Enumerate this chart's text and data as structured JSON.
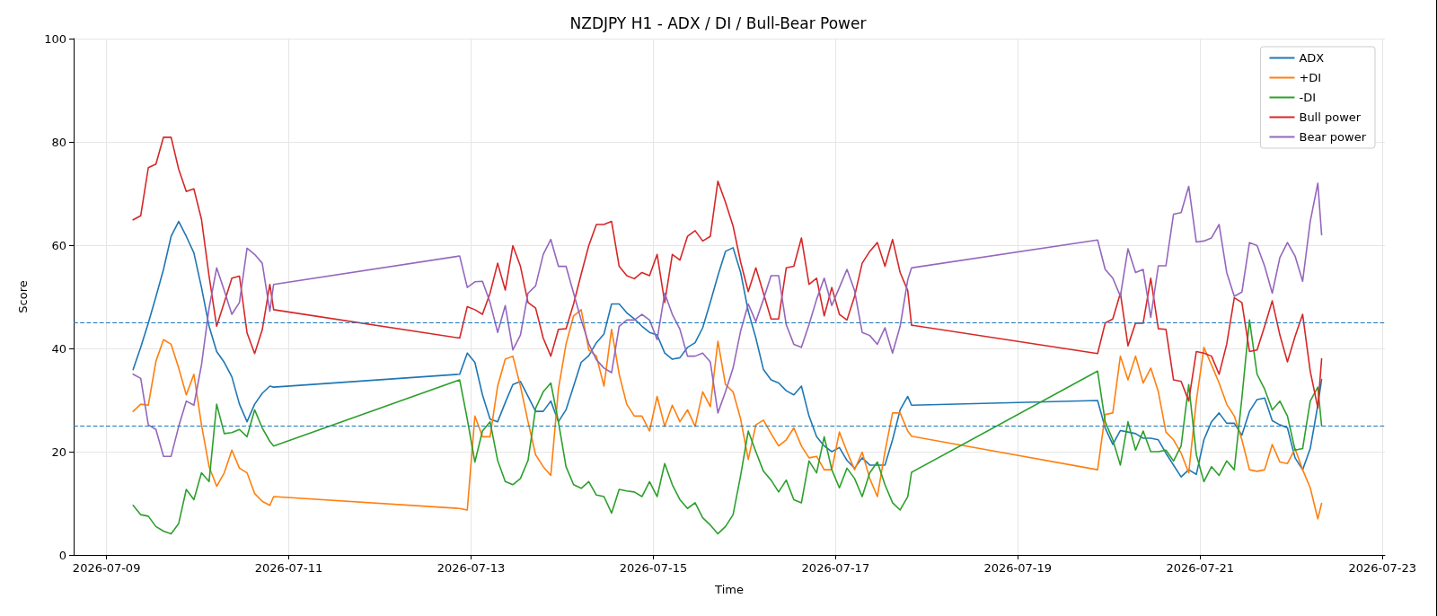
{
  "chart_data": {
    "type": "line",
    "title": "NZDJPY H1 - ADX / DI / Bull-Bear Power",
    "xlabel": "Time",
    "ylabel": "Score",
    "x": [
      "2026-07-09T07:00",
      "2026-07-09T09:00",
      "2026-07-09T11:00",
      "2026-07-09T13:00",
      "2026-07-09T15:00",
      "2026-07-09T17:00",
      "2026-07-09T19:00",
      "2026-07-09T21:00",
      "2026-07-09T23:00",
      "2026-07-10T01:00",
      "2026-07-10T03:00",
      "2026-07-10T05:00",
      "2026-07-10T07:00",
      "2026-07-10T09:00",
      "2026-07-10T11:00",
      "2026-07-10T13:00",
      "2026-07-10T15:00",
      "2026-07-10T17:00",
      "2026-07-10T19:00",
      "2026-07-10T20:00",
      "2026-07-12T21:00",
      "2026-07-12T23:00",
      "2026-07-13T01:00",
      "2026-07-13T03:00",
      "2026-07-13T05:00",
      "2026-07-13T07:00",
      "2026-07-13T09:00",
      "2026-07-13T11:00",
      "2026-07-13T13:00",
      "2026-07-13T15:00",
      "2026-07-13T17:00",
      "2026-07-13T19:00",
      "2026-07-13T21:00",
      "2026-07-13T23:00",
      "2026-07-14T01:00",
      "2026-07-14T03:00",
      "2026-07-14T05:00",
      "2026-07-14T07:00",
      "2026-07-14T09:00",
      "2026-07-14T11:00",
      "2026-07-14T13:00",
      "2026-07-14T15:00",
      "2026-07-14T17:00",
      "2026-07-14T19:00",
      "2026-07-14T21:00",
      "2026-07-14T23:00",
      "2026-07-15T01:00",
      "2026-07-15T03:00",
      "2026-07-15T05:00",
      "2026-07-15T07:00",
      "2026-07-15T09:00",
      "2026-07-15T11:00",
      "2026-07-15T13:00",
      "2026-07-15T15:00",
      "2026-07-15T17:00",
      "2026-07-15T19:00",
      "2026-07-15T21:00",
      "2026-07-15T23:00",
      "2026-07-16T01:00",
      "2026-07-16T03:00",
      "2026-07-16T05:00",
      "2026-07-16T07:00",
      "2026-07-16T09:00",
      "2026-07-16T11:00",
      "2026-07-16T13:00",
      "2026-07-16T15:00",
      "2026-07-16T17:00",
      "2026-07-16T19:00",
      "2026-07-16T21:00",
      "2026-07-16T23:00",
      "2026-07-17T01:00",
      "2026-07-17T03:00",
      "2026-07-17T05:00",
      "2026-07-17T07:00",
      "2026-07-17T09:00",
      "2026-07-17T11:00",
      "2026-07-17T13:00",
      "2026-07-17T15:00",
      "2026-07-17T17:00",
      "2026-07-17T19:00",
      "2026-07-17T20:00",
      "2026-07-19T21:00",
      "2026-07-19T23:00",
      "2026-07-20T01:00",
      "2026-07-20T03:00",
      "2026-07-20T05:00",
      "2026-07-20T07:00",
      "2026-07-20T09:00",
      "2026-07-20T11:00",
      "2026-07-20T13:00",
      "2026-07-20T15:00",
      "2026-07-20T17:00",
      "2026-07-20T19:00",
      "2026-07-20T21:00",
      "2026-07-20T23:00",
      "2026-07-21T01:00",
      "2026-07-21T03:00",
      "2026-07-21T05:00",
      "2026-07-21T07:00",
      "2026-07-21T09:00",
      "2026-07-21T11:00",
      "2026-07-21T13:00",
      "2026-07-21T15:00",
      "2026-07-21T17:00",
      "2026-07-21T19:00",
      "2026-07-21T21:00",
      "2026-07-21T23:00",
      "2026-07-22T01:00",
      "2026-07-22T03:00",
      "2026-07-22T05:00",
      "2026-07-22T07:00",
      "2026-07-22T08:00"
    ],
    "series": [
      {
        "name": "ADX",
        "color": "#1f77b4",
        "values": [
          35.9,
          40.2,
          44.9,
          50,
          55.3,
          61.7,
          64.6,
          61.7,
          58.5,
          51.8,
          44.3,
          39.4,
          37.3,
          34.5,
          29.2,
          25.8,
          29.2,
          31.3,
          32.7,
          32.5,
          35,
          39.1,
          37.3,
          31,
          26.3,
          25.8,
          29.5,
          33,
          33.6,
          30.7,
          27.8,
          27.8,
          29.8,
          25.8,
          28.1,
          32.7,
          37.3,
          38.6,
          41.1,
          42.8,
          48.6,
          48.6,
          46.9,
          45.7,
          44.3,
          43.1,
          42.6,
          39.1,
          37.9,
          38.2,
          40.2,
          41.1,
          44,
          48.9,
          54.1,
          58.8,
          59.5,
          54.7,
          47.2,
          42,
          35.9,
          33.9,
          33.3,
          31.8,
          31,
          32.7,
          26.9,
          22.9,
          21.1,
          20,
          20.8,
          18.3,
          16.8,
          18.8,
          17.4,
          17.4,
          17.4,
          22.3,
          28.1,
          30.7,
          29,
          29.9,
          24.6,
          21.4,
          24.1,
          23.8,
          23.5,
          22.6,
          22.6,
          22.3,
          19.7,
          17.4,
          15.1,
          16.5,
          15.6,
          22.3,
          25.8,
          27.5,
          25.5,
          25.5,
          23.2,
          27.8,
          30.1,
          30.4,
          26,
          25.2,
          24.6,
          18.8,
          16.5,
          20.6,
          29,
          34
        ]
      },
      {
        "name": "+DI",
        "color": "#ff7f0e",
        "values": [
          27.8,
          29.2,
          29,
          37.5,
          41.7,
          40.8,
          36.2,
          31,
          35,
          25.2,
          17.1,
          13.3,
          15.9,
          20.3,
          16.8,
          15.9,
          11.9,
          10.4,
          9.6,
          11.3,
          9,
          8.7,
          26.9,
          22.9,
          22.9,
          32.7,
          37.9,
          38.5,
          32.7,
          25.8,
          19.4,
          17.1,
          15.4,
          32.1,
          40.8,
          46.3,
          47.5,
          39.7,
          38.5,
          32.7,
          43.7,
          35,
          29.2,
          26.9,
          26.9,
          24,
          30.7,
          24.9,
          29,
          25.8,
          28.1,
          24.9,
          31.6,
          28.7,
          41.4,
          33,
          31.6,
          26.3,
          18.5,
          25.2,
          26.1,
          23.5,
          21.1,
          22.3,
          24.6,
          21.1,
          18.8,
          19.1,
          16.5,
          16.5,
          23.8,
          20,
          16.5,
          19.9,
          14.8,
          11.3,
          20,
          27.5,
          27.5,
          24,
          23,
          16.5,
          27.2,
          27.5,
          38.5,
          33.9,
          38.5,
          33.3,
          36.2,
          31.6,
          23.8,
          22.3,
          19.7,
          15.9,
          29.8,
          40.2,
          36.8,
          33.3,
          29.2,
          26.9,
          22.3,
          16.5,
          16.2,
          16.5,
          21.4,
          18,
          17.7,
          20.6,
          16.5,
          13,
          7,
          10
        ]
      },
      {
        "name": "-DI",
        "color": "#2ca02c",
        "values": [
          9.6,
          7.8,
          7.5,
          5.5,
          4.6,
          4.1,
          6.1,
          12.7,
          10.7,
          15.9,
          14.2,
          29.2,
          23.5,
          23.7,
          24.3,
          22.9,
          28.1,
          24.6,
          22,
          21.1,
          33.9,
          26.3,
          18,
          24,
          25.8,
          18.3,
          14.2,
          13.6,
          14.8,
          18.3,
          28.4,
          31.6,
          33.3,
          25.8,
          17.1,
          13.6,
          12.9,
          14.2,
          11.6,
          11.3,
          8.1,
          12.7,
          12.4,
          12.2,
          11.3,
          14.2,
          11.3,
          17.7,
          13.6,
          10.7,
          9,
          10.1,
          7.2,
          5.8,
          4.1,
          5.5,
          7.8,
          15.4,
          24,
          20,
          16.2,
          14.5,
          12.2,
          14.5,
          10.7,
          10.1,
          18.2,
          15.9,
          22.9,
          16.5,
          13,
          16.8,
          14.8,
          11.3,
          15.9,
          18,
          13.6,
          10.1,
          8.7,
          11.3,
          16,
          35.6,
          25.8,
          22.3,
          17.4,
          25.8,
          20.3,
          24,
          20,
          20,
          20.3,
          18.2,
          21.1,
          33,
          19.4,
          14.2,
          17.1,
          15.4,
          18.2,
          16.5,
          30.4,
          45.5,
          35,
          32.1,
          28.1,
          29.8,
          26.9,
          20.3,
          20.6,
          29.8,
          32.5,
          25
        ]
      },
      {
        "name": "Bull power",
        "color": "#d62728",
        "values": [
          64.9,
          65.7,
          75,
          75.7,
          80.9,
          80.9,
          74.7,
          70.4,
          70.9,
          65,
          54,
          44.3,
          48.9,
          53.6,
          54,
          43,
          39,
          43.6,
          52.4,
          47.5,
          42,
          48.1,
          47.5,
          46.6,
          50.7,
          56.5,
          51.3,
          59.9,
          55.9,
          48.9,
          47.8,
          42,
          38.5,
          43.7,
          43.8,
          48.6,
          54.4,
          59.9,
          64,
          64,
          64.6,
          55.9,
          54.1,
          53.5,
          54.7,
          54.1,
          58.2,
          48.9,
          58.2,
          57.1,
          61.7,
          62.8,
          60.8,
          61.7,
          72.4,
          68.3,
          63.7,
          56.7,
          51,
          55.6,
          50.7,
          45.7,
          45.7,
          55.6,
          55.9,
          61.4,
          52.4,
          53.6,
          46.3,
          51.8,
          46.6,
          45.5,
          50.1,
          56.5,
          58.8,
          60.5,
          55.9,
          61.1,
          54.7,
          51.2,
          44.5,
          39,
          44.9,
          45.7,
          50.7,
          40.5,
          44.9,
          44.9,
          53.6,
          43.8,
          43.7,
          33.9,
          33.6,
          29.8,
          39.4,
          39.1,
          38.5,
          35,
          40.8,
          49.8,
          48.9,
          39.4,
          39.7,
          44.3,
          49.2,
          42.6,
          37.4,
          42.3,
          46.6,
          35.6,
          28.5,
          38
        ]
      },
      {
        "name": "Bear power",
        "color": "#9467bd",
        "values": [
          35,
          34.2,
          25.2,
          24.3,
          19.1,
          19.1,
          24.9,
          29.8,
          29,
          36.8,
          47.8,
          55.6,
          51.2,
          46.6,
          48.9,
          59.4,
          58.2,
          56.5,
          47.2,
          52.4,
          57.9,
          51.8,
          52.9,
          53,
          48.9,
          43.1,
          48.3,
          39.7,
          42.6,
          50.7,
          52.1,
          58.2,
          61.1,
          55.9,
          55.9,
          50.7,
          45.5,
          40.9,
          37.8,
          36.2,
          35.3,
          44.3,
          45.5,
          45.5,
          46.6,
          45.5,
          41.7,
          50.7,
          46.6,
          43.7,
          38.5,
          38.5,
          39.1,
          37.4,
          27.5,
          31.6,
          36.2,
          43.4,
          48.6,
          45.2,
          49.5,
          54.1,
          54.1,
          44.6,
          40.8,
          40.2,
          44.6,
          49.5,
          53.6,
          48.3,
          51.8,
          55.3,
          51.2,
          43.1,
          42.5,
          40.8,
          44,
          39.1,
          44.3,
          53.3,
          55.6,
          61,
          55.3,
          53.6,
          50.1,
          59.3,
          54.7,
          55.3,
          46,
          56,
          56,
          66,
          66.3,
          71.4,
          60.6,
          60.8,
          61.4,
          64,
          54.7,
          50.1,
          50.9,
          60.5,
          59.9,
          55.9,
          50.7,
          57.6,
          60.5,
          57.9,
          53,
          64.6,
          72,
          62
        ]
      }
    ],
    "ref_lines": [
      {
        "axis": "y",
        "value": 45,
        "color": "#1f77b4",
        "line_style": "dashed"
      },
      {
        "axis": "y",
        "value": 25,
        "color": "#1f77b4",
        "line_style": "dashed"
      }
    ],
    "xlim": [
      "2026-07-08T15:20",
      "2026-07-23T00:40"
    ],
    "xticks": [
      "2026-07-09",
      "2026-07-11",
      "2026-07-13",
      "2026-07-15",
      "2026-07-17",
      "2026-07-19",
      "2026-07-21",
      "2026-07-23"
    ],
    "ylim": [
      0,
      100
    ],
    "yticks": [
      0,
      20,
      40,
      60,
      80,
      100
    ],
    "grid": true,
    "legend": "top right"
  }
}
